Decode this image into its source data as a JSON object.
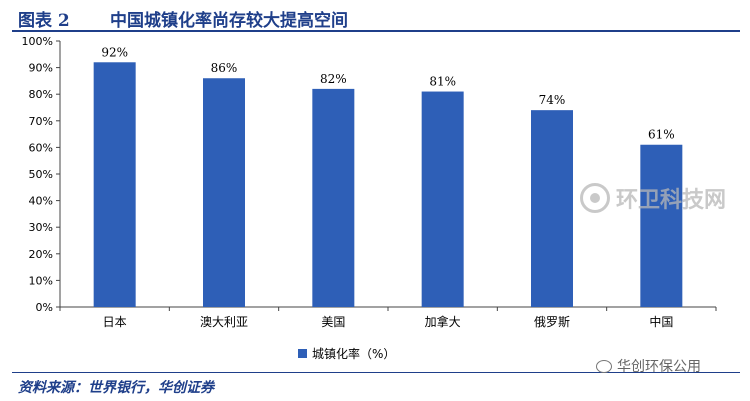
{
  "header": {
    "label": "图表 2",
    "title": "中国城镇化率尚存较大提高空间"
  },
  "footer": {
    "source": "资料来源：世界银行，华创证券"
  },
  "watermarks": {
    "center": "环卫科技网",
    "corner": "华创环保公用"
  },
  "colors": {
    "bar": "#2e5fb7",
    "title": "#1f3f8a"
  },
  "chart_data": {
    "type": "bar",
    "categories": [
      "日本",
      "澳大利亚",
      "美国",
      "加拿大",
      "俄罗斯",
      "中国"
    ],
    "series": [
      {
        "name": "城镇化率（%）",
        "values": [
          92,
          86,
          82,
          81,
          74,
          61
        ],
        "data_labels": [
          "92%",
          "86%",
          "82%",
          "81%",
          "74%",
          "61%"
        ]
      }
    ],
    "ylim": [
      0,
      100
    ],
    "yticks": [
      0,
      10,
      20,
      30,
      40,
      50,
      60,
      70,
      80,
      90,
      100
    ],
    "ytick_labels": [
      "0%",
      "10%",
      "20%",
      "30%",
      "40%",
      "50%",
      "60%",
      "70%",
      "80%",
      "90%",
      "100%"
    ],
    "grid": false,
    "legend": "bottom"
  }
}
